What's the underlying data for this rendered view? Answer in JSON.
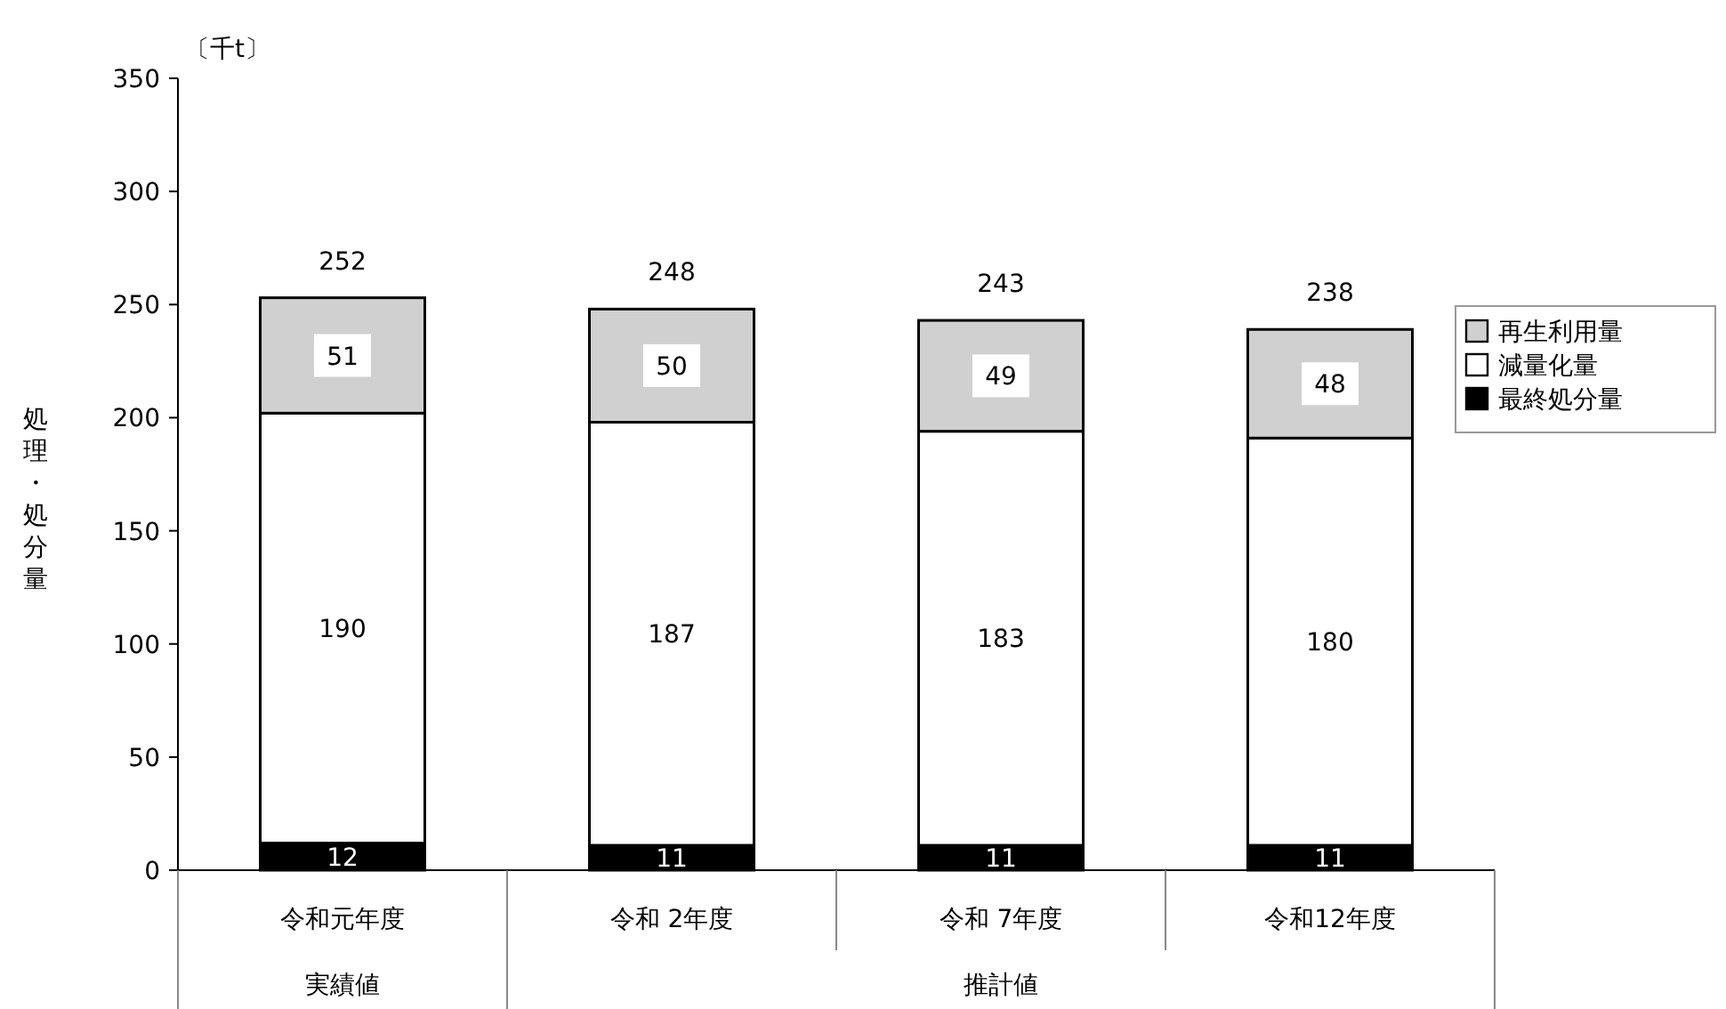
{
  "chart_data": {
    "type": "bar",
    "stacked": true,
    "ylabel": "処理・処分量",
    "categories": [
      "令和元年度",
      "令和 2年度",
      "令和 7年度",
      "令和12年度"
    ],
    "series": [
      {
        "name": "最終処分量",
        "color": "#000000",
        "values": [
          12,
          11,
          11,
          11
        ]
      },
      {
        "name": "減量化量",
        "color": "#ffffff",
        "values": [
          190,
          187,
          183,
          180
        ]
      },
      {
        "name": "再生利用量",
        "color": "#d0d0d0",
        "values": [
          51,
          50,
          49,
          48
        ]
      }
    ],
    "ylim": [
      0,
      350
    ],
    "yticks": [
      0,
      50,
      100,
      150,
      200,
      250,
      300,
      350
    ],
    "data_labels": true,
    "totals": [
      "252",
      "248",
      "243",
      "238"
    ],
    "legend": "right",
    "grid": false,
    "annotations": [
      "〔千t〕",
      "実績値",
      "推計値"
    ]
  }
}
